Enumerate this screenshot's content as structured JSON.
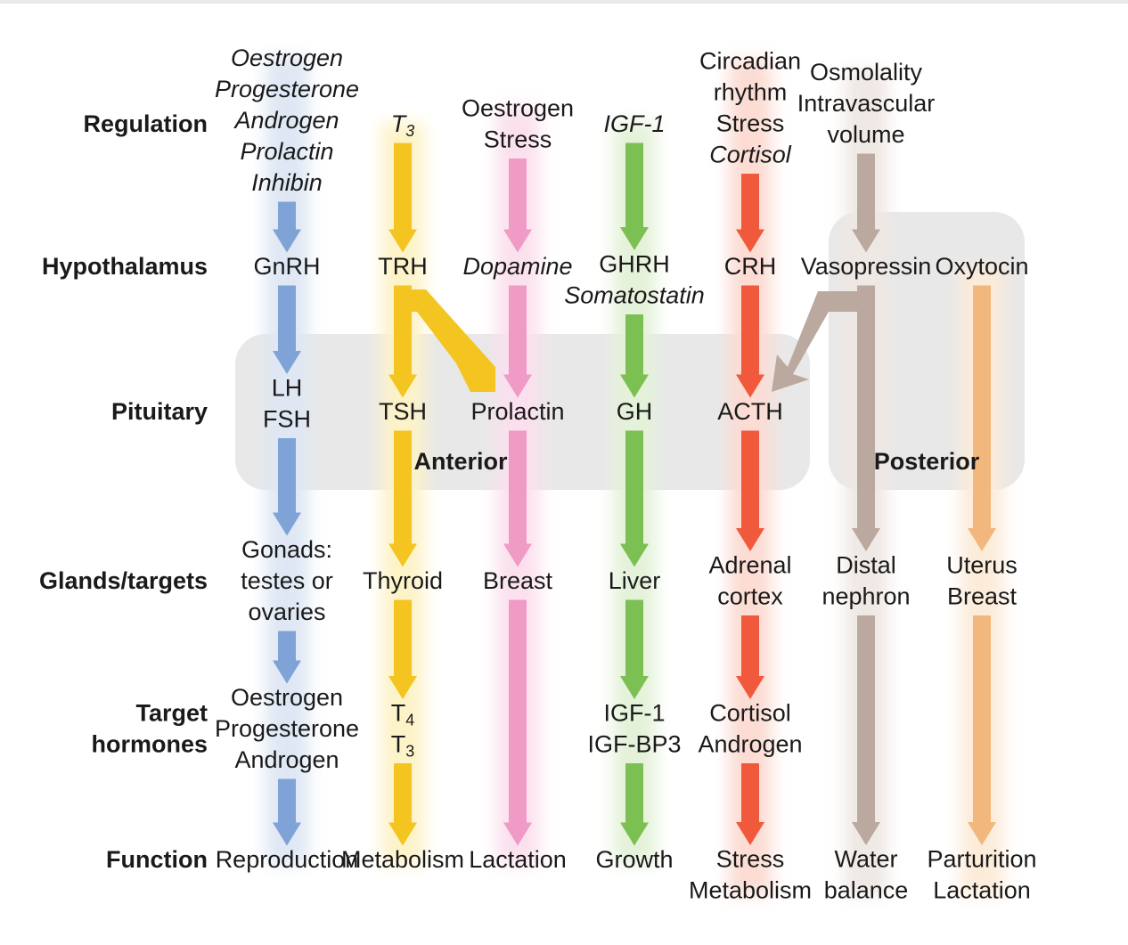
{
  "diagram": {
    "rows": {
      "regulation": "Regulation",
      "hypothalamus": "Hypothalamus",
      "pituitary": "Pituitary",
      "glands": "Glands/targets",
      "target1": "Target",
      "target2": "hormones",
      "function": "Function"
    },
    "zones": {
      "anterior": "Anterior",
      "posterior": "Posterior"
    },
    "axes": [
      {
        "id": "gonadal",
        "color": "#7fa3d6",
        "glow": "#dfe7f4",
        "regulation": [
          "Oestrogen",
          "Progesterone",
          "Androgen",
          "Prolactin",
          "Inhibin"
        ],
        "regulation_italic": true,
        "hypothalamus": [
          "GnRH"
        ],
        "hypothalamus_italic": false,
        "pituitary": [
          "LH",
          "FSH"
        ],
        "glands": [
          "Gonads:",
          "testes or",
          "ovaries"
        ],
        "target": [
          "Oestrogen",
          "Progesterone",
          "Androgen"
        ],
        "function": [
          "Reproduction"
        ]
      },
      {
        "id": "thyroid",
        "color": "#f4c520",
        "glow": "#fdf3c8",
        "regulation": [
          "T3"
        ],
        "regulation_italic": true,
        "hypothalamus": [
          "TRH"
        ],
        "hypothalamus_italic": false,
        "pituitary": [
          "TSH"
        ],
        "glands": [
          "Thyroid"
        ],
        "target": [
          "T4",
          "T3"
        ],
        "function": [
          "Metabolism"
        ]
      },
      {
        "id": "prolactin",
        "color": "#f09ac6",
        "glow": "#fbe0ee",
        "regulation": [
          "Oestrogen",
          "Stress"
        ],
        "regulation_italic": false,
        "hypothalamus": [
          "Dopamine"
        ],
        "hypothalamus_italic": true,
        "pituitary": [
          "Prolactin"
        ],
        "glands": [
          "Breast"
        ],
        "target": [],
        "function": [
          "Lactation"
        ]
      },
      {
        "id": "growth",
        "color": "#7cbf52",
        "glow": "#e4f2d9",
        "regulation": [
          "IGF-1"
        ],
        "regulation_italic": true,
        "hypothalamus": [
          "GHRH",
          "Somatostatin"
        ],
        "hypothalamus_italic": false,
        "pituitary": [
          "GH"
        ],
        "glands": [
          "Liver"
        ],
        "target": [
          "IGF-1",
          "IGF-BP3"
        ],
        "function": [
          "Growth"
        ]
      },
      {
        "id": "adrenal",
        "color": "#f0593c",
        "glow": "#fcdcd3",
        "regulation": [
          "Circadian",
          "rhythm",
          "Stress",
          "Cortisol"
        ],
        "regulation_italic": false,
        "hypothalamus": [
          "CRH"
        ],
        "hypothalamus_italic": false,
        "pituitary": [
          "ACTH"
        ],
        "glands": [
          "Adrenal",
          "cortex"
        ],
        "target": [
          "Cortisol",
          "Androgen"
        ],
        "function": [
          "Stress",
          "Metabolism"
        ]
      },
      {
        "id": "vasopressin",
        "color": "#bba99f",
        "glow": "#efe8e4",
        "regulation": [
          "Osmolality",
          "Intravascular",
          "volume"
        ],
        "regulation_italic": false,
        "hypothalamus": [
          "Vasopressin"
        ],
        "hypothalamus_italic": false,
        "pituitary": [],
        "glands": [
          "Distal",
          "nephron"
        ],
        "target": [],
        "function": [
          "Water",
          "balance"
        ]
      },
      {
        "id": "oxytocin",
        "color": "#f2b77d",
        "glow": "#fcebd9",
        "regulation": [],
        "regulation_italic": false,
        "hypothalamus": [
          "Oxytocin"
        ],
        "hypothalamus_italic": false,
        "pituitary": [],
        "glands": [
          "Uterus",
          "Breast"
        ],
        "target": [],
        "function": [
          "Parturition",
          "Lactation"
        ]
      }
    ]
  }
}
